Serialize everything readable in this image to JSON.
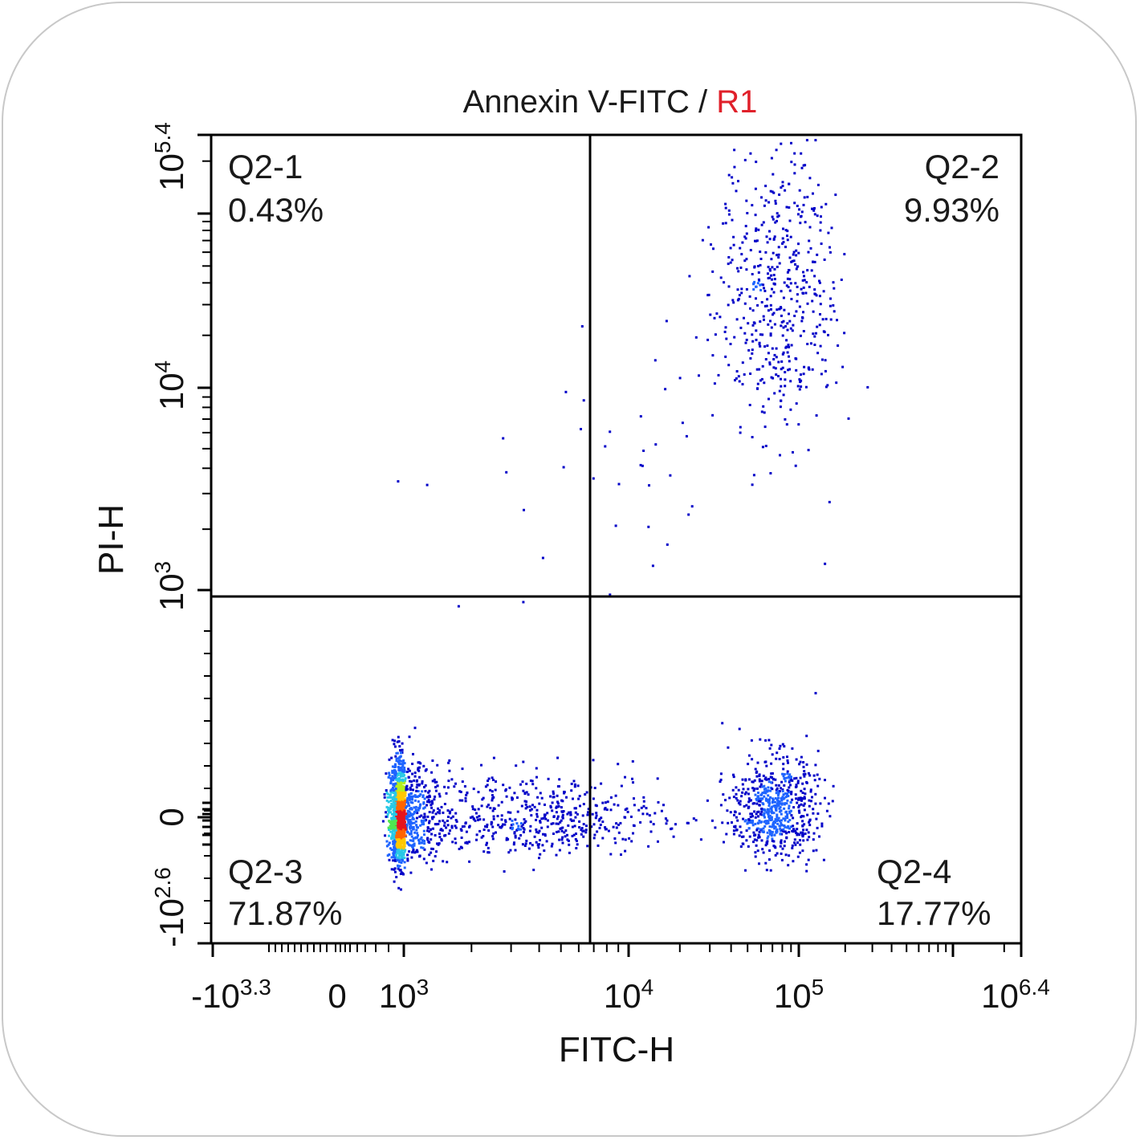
{
  "chart_data": {
    "type": "scatter",
    "title": {
      "main": "Annexin V-FITC / ",
      "gate": "R1"
    },
    "xlabel": "FITC-H",
    "ylabel": "PI-H",
    "x_scale": "biexponential",
    "y_scale": "biexponential",
    "x_tick_labels": [
      {
        "base": "-10",
        "exp": "3.3"
      },
      {
        "base": "0",
        "exp": ""
      },
      {
        "base": "10",
        "exp": "3"
      },
      {
        "base": "10",
        "exp": "4"
      },
      {
        "base": "10",
        "exp": "5"
      },
      {
        "base": "10",
        "exp": "6.4"
      }
    ],
    "y_tick_labels": [
      {
        "base": "-10",
        "exp": "2.6"
      },
      {
        "base": "0",
        "exp": ""
      },
      {
        "base": "10",
        "exp": "3"
      },
      {
        "base": "10",
        "exp": "4"
      },
      {
        "base": "10",
        "exp": "5.4"
      }
    ],
    "quadrants": [
      {
        "name": "Q2-1",
        "percent": "0.43%"
      },
      {
        "name": "Q2-2",
        "percent": "9.93%"
      },
      {
        "name": "Q2-3",
        "percent": "71.87%"
      },
      {
        "name": "Q2-4",
        "percent": "17.77%"
      }
    ],
    "density_colors": [
      "#0000c8",
      "#1e64ff",
      "#28c8e6",
      "#50e650",
      "#b4f01e",
      "#ffc800",
      "#ff6400",
      "#e6141e"
    ],
    "populations": [
      {
        "x_log": 2.9,
        "y_log": 0.1,
        "sx": 0.12,
        "sy": 0.35,
        "n": 1500
      },
      {
        "x_log": 3.55,
        "y_log": 0.1,
        "sx": 0.32,
        "sy": 0.3,
        "n": 550
      },
      {
        "x_log": 4.85,
        "y_log": 0.2,
        "sx": 0.13,
        "sy": 0.35,
        "n": 650
      },
      {
        "x_log": 4.88,
        "y_log": 4.55,
        "sx": 0.18,
        "sy": 0.4,
        "n": 520
      },
      {
        "x_log": 3.9,
        "y_log": 3.55,
        "sx": 0.45,
        "sy": 0.4,
        "n": 45
      }
    ]
  }
}
